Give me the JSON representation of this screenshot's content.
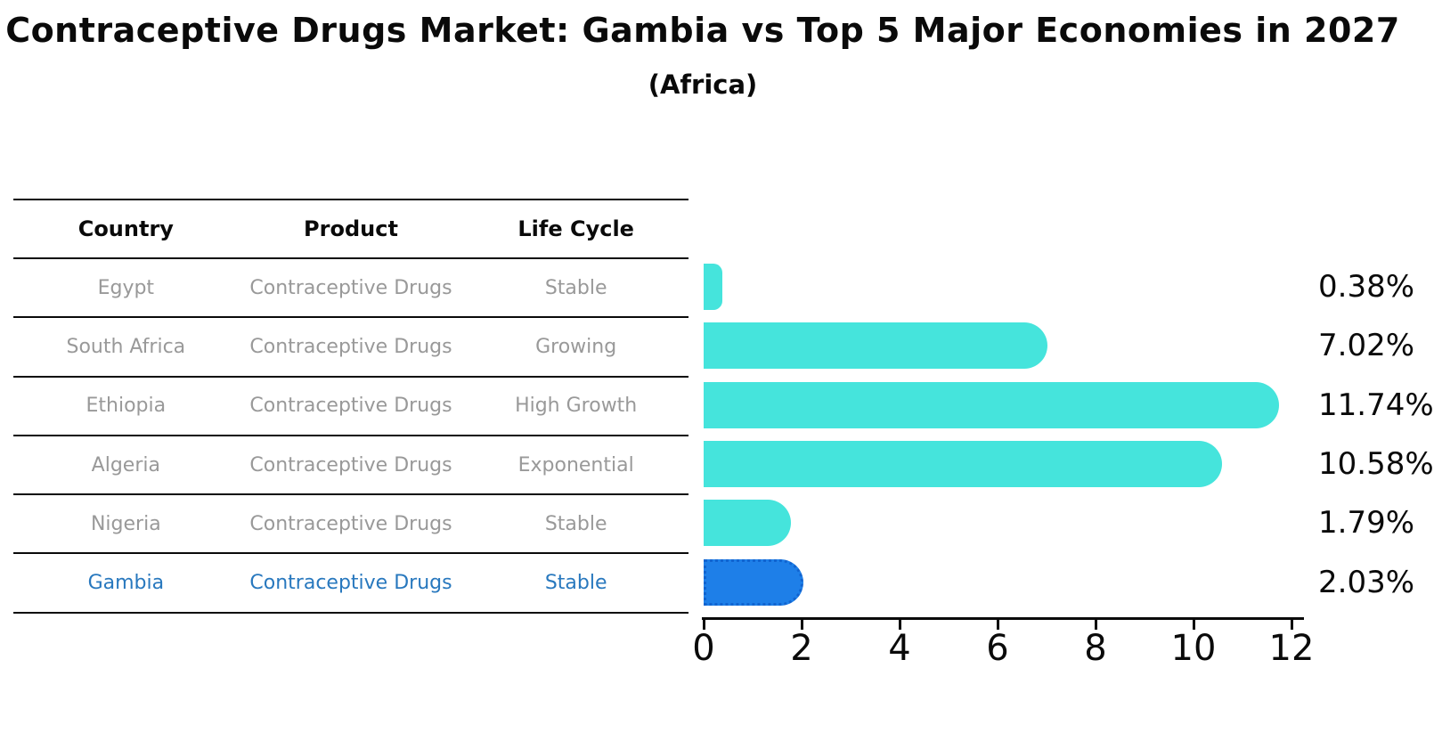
{
  "chart": {
    "title": "Contraceptive Drugs Market: Gambia vs Top 5 Major Economies in 2027",
    "subtitle": "(Africa)"
  },
  "table": {
    "headers": [
      "Country",
      "Product",
      "Life Cycle"
    ],
    "rows": [
      {
        "country": "Egypt",
        "product": "Contraceptive Drugs",
        "life_cycle": "Stable",
        "highlight": false
      },
      {
        "country": "South Africa",
        "product": "Contraceptive Drugs",
        "life_cycle": "Growing",
        "highlight": false
      },
      {
        "country": "Ethiopia",
        "product": "Contraceptive Drugs",
        "life_cycle": "High Growth",
        "highlight": false
      },
      {
        "country": "Algeria",
        "product": "Contraceptive Drugs",
        "life_cycle": "Exponential",
        "highlight": false
      },
      {
        "country": "Nigeria",
        "product": "Contraceptive Drugs",
        "life_cycle": "Stable",
        "highlight": false
      },
      {
        "country": "Gambia",
        "product": "Contraceptive Drugs",
        "life_cycle": "Stable",
        "highlight": true
      }
    ]
  },
  "chart_data": {
    "type": "bar",
    "orientation": "horizontal",
    "title": "Contraceptive Drugs Market: Gambia vs Top 5 Major Economies in 2027",
    "subtitle": "(Africa)",
    "categories": [
      "Egypt",
      "South Africa",
      "Ethiopia",
      "Algeria",
      "Nigeria",
      "Gambia"
    ],
    "values": [
      0.38,
      7.02,
      11.74,
      10.58,
      1.79,
      2.03
    ],
    "value_labels": [
      "0.38%",
      "7.02%",
      "11.74%",
      "10.58%",
      "1.79%",
      "2.03%"
    ],
    "xlabel": "",
    "ylabel": "",
    "xlim": [
      0,
      12
    ],
    "x_ticks": [
      0,
      2,
      4,
      6,
      8,
      10,
      12
    ],
    "grid": false,
    "legend": false,
    "highlight_index": 5,
    "bar_color": "#45E4DC",
    "highlight_color": "#1E7FE8",
    "highlight_edge_color": "#1164D0"
  },
  "colors": {
    "text_muted": "#999999",
    "highlight_text": "#2878BE",
    "line": "#0a0a0a"
  }
}
